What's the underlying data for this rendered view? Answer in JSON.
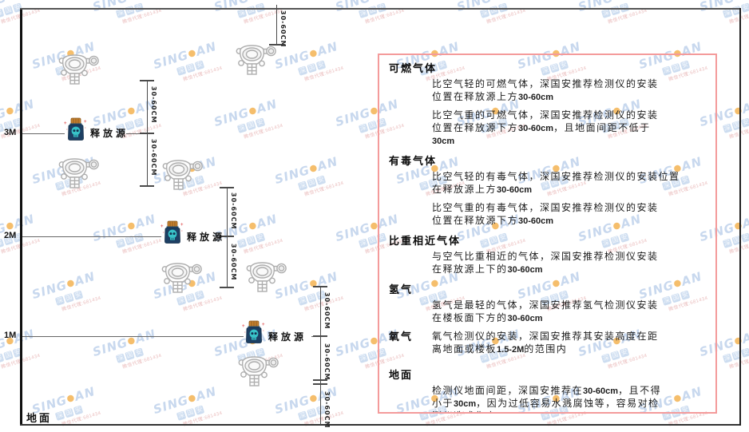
{
  "watermark": {
    "brand_left": "SING",
    "dot": "●",
    "brand_right": "AN",
    "seal_chars": [
      "深",
      "国",
      "安"
    ],
    "sub_text": "微信代理:681434"
  },
  "diagram": {
    "axis": {
      "m3": "3M",
      "m2": "2M",
      "m1": "1M"
    },
    "ground_label": "地面",
    "source_label": "释放源",
    "dim_label": "30-60CM"
  },
  "panel": {
    "sections": [
      {
        "heading": "可燃气体",
        "inline": false,
        "gap_top": false,
        "paragraphs": [
          [
            "比空气轻的可燃气体，深国安推荐检测仪的安装",
            "位置在释放源上方30-60cm"
          ],
          [
            "比空气重的可燃气体，深国安推荐检测仪的安装",
            "位置在释放源下方30-60cm，且地面间距不低于",
            "30cm"
          ]
        ]
      },
      {
        "heading": "有毒气体",
        "inline": false,
        "gap_top": false,
        "paragraphs": [
          [
            "比空气轻的有毒气体，深国安推荐检测仪的安装位置",
            "在释放源上方30-60cm"
          ],
          [
            "比空气重的有毒气体，深国安推荐检测仪的安装",
            "位置在释放源下方30-60cm"
          ]
        ]
      },
      {
        "heading": "比重相近气体",
        "inline": false,
        "gap_top": false,
        "paragraphs": [
          [
            "与空气比重相近的气体，深国安推荐检测仪安装",
            "在释放源上下的30-60cm"
          ]
        ]
      },
      {
        "heading": "氢气",
        "inline": false,
        "gap_top": false,
        "paragraphs": [
          [
            "氢气是最轻的气体，深国安推荐氢气检测仪安装",
            "在楼板面下方的30-60cm"
          ]
        ]
      },
      {
        "heading": "氧气",
        "inline": true,
        "gap_top": false,
        "paragraphs": [
          [
            "氧气检测仪的安装，深国安推荐其安装高度在距",
            "离地面或楼板1.5-2M的范围内"
          ]
        ]
      },
      {
        "heading": "地面",
        "inline": false,
        "gap_top": true,
        "paragraphs": [
          [
            "检测仪地面间距，深国安推荐在30-60cm，且不得",
            "小于30cm，因为过低容易水溅腐蚀等，容易对检",
            "测仪造成伤害"
          ]
        ]
      }
    ]
  }
}
